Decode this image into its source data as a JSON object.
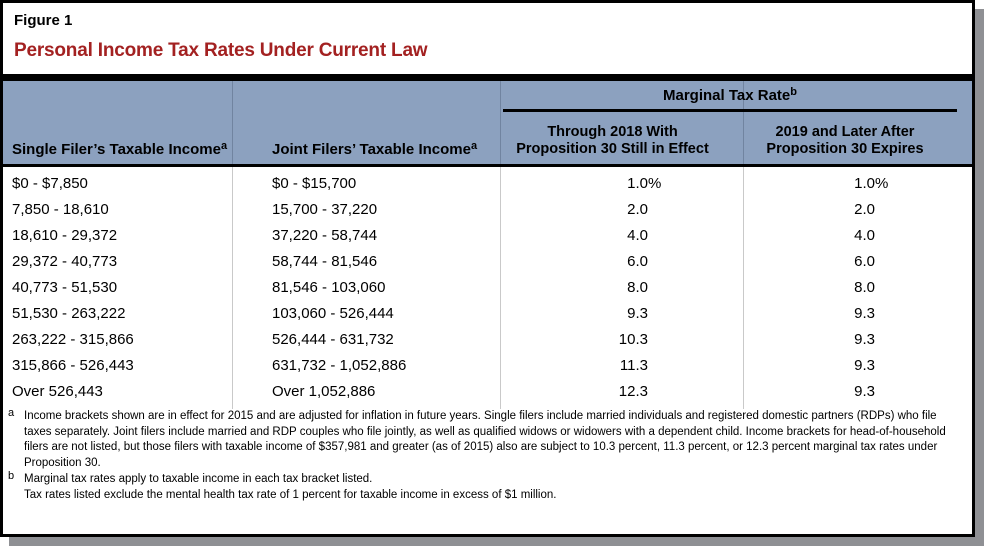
{
  "figure": {
    "label": "Figure 1",
    "title": "Personal Income Tax Rates Under Current Law"
  },
  "colors": {
    "header_bg": "#8CA1BF",
    "title_red": "#A32121",
    "frame_border": "#000000",
    "drop_shadow": "#8F9094",
    "body_divider": "#C9C9C9"
  },
  "table": {
    "col_headers": {
      "single": "Single Filer’s Taxable Income",
      "single_sup": "a",
      "joint": "Joint Filers’ Taxable Income",
      "joint_sup": "a",
      "spanner": "Marginal Tax Rate",
      "spanner_sup": "b",
      "rate_prop30_line1": "Through 2018 With",
      "rate_prop30_line2": "Proposition 30 Still in Effect",
      "rate_after_line1": "2019 and Later After",
      "rate_after_line2": "Proposition 30 Expires"
    },
    "rows": [
      {
        "single": "$0 - $7,850",
        "joint": "$0 - $15,700",
        "rate_prop30": "1.0%",
        "rate_after": "1.0%"
      },
      {
        "single": "7,850 - 18,610",
        "joint": "15,700 - 37,220",
        "rate_prop30": "2.0",
        "rate_after": "2.0"
      },
      {
        "single": "18,610 - 29,372",
        "joint": "37,220 - 58,744",
        "rate_prop30": "4.0",
        "rate_after": "4.0"
      },
      {
        "single": "29,372 - 40,773",
        "joint": "58,744 - 81,546",
        "rate_prop30": "6.0",
        "rate_after": "6.0"
      },
      {
        "single": "40,773 - 51,530",
        "joint": "81,546 - 103,060",
        "rate_prop30": "8.0",
        "rate_after": "8.0"
      },
      {
        "single": "51,530 - 263,222",
        "joint": "103,060 - 526,444",
        "rate_prop30": "9.3",
        "rate_after": "9.3"
      },
      {
        "single": "263,222 - 315,866",
        "joint": "526,444 - 631,732",
        "rate_prop30": "10.3",
        "rate_after": "9.3"
      },
      {
        "single": "315,866 - 526,443",
        "joint": "631,732 - 1,052,886",
        "rate_prop30": "11.3",
        "rate_after": "9.3"
      },
      {
        "single": "Over 526,443",
        "joint": "Over 1,052,886",
        "rate_prop30": "12.3",
        "rate_after": "9.3"
      }
    ]
  },
  "footnotes": [
    {
      "marker": "a",
      "lines": [
        "Income brackets shown are in effect for 2015 and are adjusted for inflation in future years. Single filers include married individuals and registered domestic partners (RDPs) who file taxes separately. Joint filers include married and RDP couples who file jointly, as well as qualified widows or widowers with a dependent child. Income brackets for head-of-household filers are not listed, but those filers with taxable income of $357,981 and greater (as of 2015) also are subject to 10.3 percent, 11.3 percent, or 12.3 percent marginal tax rates under Proposition 30."
      ]
    },
    {
      "marker": "b",
      "lines": [
        "Marginal tax rates apply to taxable income in each tax bracket listed.",
        "Tax rates listed exclude the mental health tax rate of 1 percent for taxable income in excess of $1 million."
      ]
    }
  ]
}
